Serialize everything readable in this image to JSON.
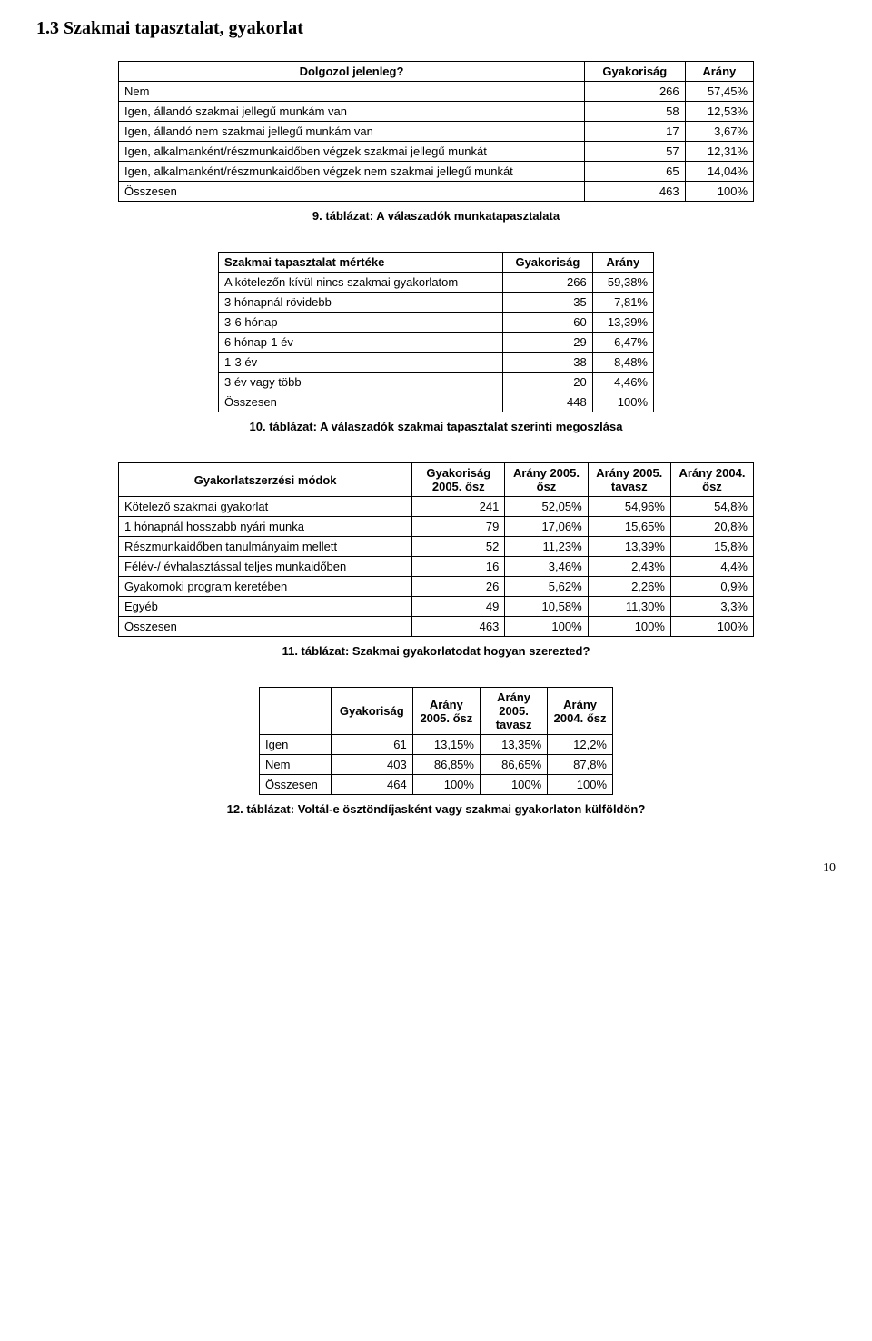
{
  "section_title": "1.3   Szakmai tapasztalat, gyakorlat",
  "t9": {
    "col0": "Dolgozol jelenleg?",
    "col1": "Gyakoriság",
    "col2": "Arány",
    "rows": [
      {
        "label": "Nem",
        "freq": "266",
        "pct": "57,45%"
      },
      {
        "label": "Igen, állandó szakmai jellegű munkám van",
        "freq": "58",
        "pct": "12,53%"
      },
      {
        "label": "Igen, állandó nem szakmai jellegű munkám van",
        "freq": "17",
        "pct": "3,67%"
      },
      {
        "label": "Igen, alkalmanként/részmunkaidőben végzek szakmai jellegű munkát",
        "freq": "57",
        "pct": "12,31%"
      },
      {
        "label": "Igen, alkalmanként/részmunkaidőben végzek nem szakmai jellegű munkát",
        "freq": "65",
        "pct": "14,04%"
      },
      {
        "label": "Összesen",
        "freq": "463",
        "pct": "100%"
      }
    ],
    "caption": "9. táblázat: A válaszadók munkatapasztalata"
  },
  "t10": {
    "col0": "Szakmai tapasztalat mértéke",
    "col1": "Gyakoriság",
    "col2": "Arány",
    "rows": [
      {
        "label": "A kötelezőn kívül nincs szakmai gyakorlatom",
        "freq": "266",
        "pct": "59,38%"
      },
      {
        "label": "3 hónapnál rövidebb",
        "freq": "35",
        "pct": "7,81%"
      },
      {
        "label": "3-6 hónap",
        "freq": "60",
        "pct": "13,39%"
      },
      {
        "label": "6 hónap-1 év",
        "freq": "29",
        "pct": "6,47%"
      },
      {
        "label": "1-3 év",
        "freq": "38",
        "pct": "8,48%"
      },
      {
        "label": "3 év vagy több",
        "freq": "20",
        "pct": "4,46%"
      },
      {
        "label": "Összesen",
        "freq": "448",
        "pct": "100%"
      }
    ],
    "caption": "10. táblázat: A válaszadók szakmai tapasztalat szerinti megoszlása"
  },
  "t11": {
    "col0": "Gyakorlatszerzési módok",
    "col1": "Gyakoriság 2005. ősz",
    "col2": "Arány 2005. ősz",
    "col3": "Arány 2005. tavasz",
    "col4": "Arány 2004. ősz",
    "rows": [
      {
        "label": "Kötelező szakmai gyakorlat",
        "c1": "241",
        "c2": "52,05%",
        "c3": "54,96%",
        "c4": "54,8%"
      },
      {
        "label": "1 hónapnál hosszabb nyári munka",
        "c1": "79",
        "c2": "17,06%",
        "c3": "15,65%",
        "c4": "20,8%"
      },
      {
        "label": "Részmunkaidőben tanulmányaim mellett",
        "c1": "52",
        "c2": "11,23%",
        "c3": "13,39%",
        "c4": "15,8%"
      },
      {
        "label": "Félév-/ évhalasztással teljes munkaidőben",
        "c1": "16",
        "c2": "3,46%",
        "c3": "2,43%",
        "c4": "4,4%"
      },
      {
        "label": "Gyakornoki program keretében",
        "c1": "26",
        "c2": "5,62%",
        "c3": "2,26%",
        "c4": "0,9%"
      },
      {
        "label": "Egyéb",
        "c1": "49",
        "c2": "10,58%",
        "c3": "11,30%",
        "c4": "3,3%"
      },
      {
        "label": "Összesen",
        "c1": "463",
        "c2": "100%",
        "c3": "100%",
        "c4": "100%"
      }
    ],
    "caption": "11. táblázat: Szakmai gyakorlatodat hogyan szerezted?"
  },
  "t12": {
    "col0": "",
    "col1": "Gyakoriság",
    "col2": "Arány 2005. ősz",
    "col3": "Arány 2005. tavasz",
    "col4": "Arány 2004. ősz",
    "rows": [
      {
        "label": "Igen",
        "c1": "61",
        "c2": "13,15%",
        "c3": "13,35%",
        "c4": "12,2%"
      },
      {
        "label": "Nem",
        "c1": "403",
        "c2": "86,85%",
        "c3": "86,65%",
        "c4": "87,8%"
      },
      {
        "label": "Összesen",
        "c1": "464",
        "c2": "100%",
        "c3": "100%",
        "c4": "100%"
      }
    ],
    "caption": "12. táblázat: Voltál-e ösztöndíjasként vagy szakmai gyakorlaton külföldön?"
  },
  "page_number": "10"
}
